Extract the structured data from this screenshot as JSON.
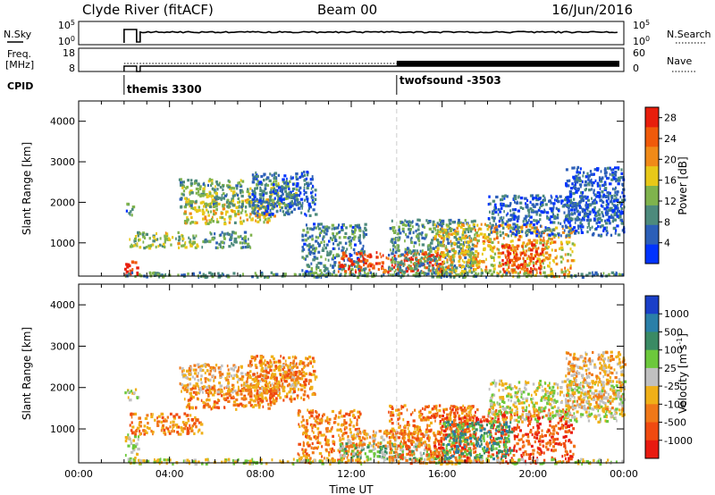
{
  "header": {
    "title": "Clyde River (fitACF)",
    "beam": "Beam 00",
    "date": "16/Jun/2016"
  },
  "top_panels": {
    "nsky_label": "N.Sky",
    "nsky_ticks": [
      "10^5",
      "10^0"
    ],
    "nsearch_label": "N.Search",
    "nsearch_ticks": [
      "10^5",
      "10^0"
    ],
    "freq_label": "Freq.",
    "freq_unit": "[MHz]",
    "freq_ticks": [
      "18",
      "8"
    ],
    "nave_label": "Nave",
    "nave_ticks": [
      "60",
      "0"
    ],
    "cpid_label": "CPID",
    "cpid_entries": [
      {
        "label": "themis 3300",
        "start_hour": 2.0
      },
      {
        "label": "twofsound -3503",
        "start_hour": 14.0
      }
    ]
  },
  "chart_data": [
    {
      "type": "heatmap",
      "title": "",
      "xlabel": "",
      "ylabel": "Slant Range [km]",
      "x_range_hours": [
        0,
        24
      ],
      "ylim": [
        180,
        4500
      ],
      "y_ticks": [
        1000,
        2000,
        3000,
        4000
      ],
      "x_tick_labels": [
        "00:00",
        "04:00",
        "08:00",
        "12:00",
        "16:00",
        "20:00",
        "00:00"
      ],
      "colorbar": {
        "label": "Power [dB]",
        "ticks": [
          4,
          8,
          12,
          16,
          20,
          24,
          28
        ],
        "range": [
          0,
          30
        ],
        "colors": [
          "#0033ff",
          "#2c5fb8",
          "#4d8a7c",
          "#7fb34d",
          "#e8c818",
          "#f08a18",
          "#f05a0a",
          "#e81e0c"
        ]
      },
      "scatter_regions": [
        {
          "start_hour": 2.0,
          "end_hour": 2.6,
          "range_low": 200,
          "range_high": 600,
          "level": 28
        },
        {
          "start_hour": 2.0,
          "end_hour": 2.4,
          "range_low": 1700,
          "range_high": 2000,
          "level": 8
        },
        {
          "start_hour": 2.2,
          "end_hour": 5.2,
          "range_low": 900,
          "range_high": 1300,
          "level": 14
        },
        {
          "start_hour": 4.6,
          "end_hour": 8.6,
          "range_low": 1500,
          "range_high": 2100,
          "level": 16
        },
        {
          "start_hour": 4.4,
          "end_hour": 9.6,
          "range_low": 1900,
          "range_high": 2600,
          "level": 12
        },
        {
          "start_hour": 5.4,
          "end_hour": 7.6,
          "range_low": 900,
          "range_high": 1300,
          "level": 10
        },
        {
          "start_hour": 7.6,
          "end_hour": 10.4,
          "range_low": 1700,
          "range_high": 2800,
          "level": 6
        },
        {
          "start_hour": 9.8,
          "end_hour": 12.6,
          "range_low": 200,
          "range_high": 1500,
          "level": 8
        },
        {
          "start_hour": 11.4,
          "end_hour": 16.0,
          "range_low": 300,
          "range_high": 800,
          "level": 26
        },
        {
          "start_hour": 13.6,
          "end_hour": 17.4,
          "range_low": 200,
          "range_high": 1600,
          "level": 10
        },
        {
          "start_hour": 15.6,
          "end_hour": 21.8,
          "range_low": 200,
          "range_high": 1500,
          "level": 18
        },
        {
          "start_hour": 18.6,
          "end_hour": 20.4,
          "range_low": 300,
          "range_high": 1000,
          "level": 25
        },
        {
          "start_hour": 18.0,
          "end_hour": 24.0,
          "range_low": 1200,
          "range_high": 2200,
          "level": 6
        },
        {
          "start_hour": 21.4,
          "end_hour": 24.0,
          "range_low": 1600,
          "range_high": 2900,
          "level": 5
        },
        {
          "start_hour": 2.0,
          "end_hour": 24.0,
          "range_low": 180,
          "range_high": 300,
          "level": 10
        }
      ]
    },
    {
      "type": "heatmap",
      "title": "",
      "xlabel": "Time UT",
      "ylabel": "Slant Range [km]",
      "x_range_hours": [
        0,
        24
      ],
      "ylim": [
        180,
        4500
      ],
      "y_ticks": [
        1000,
        2000,
        3000,
        4000
      ],
      "x_tick_labels": [
        "00:00",
        "04:00",
        "08:00",
        "12:00",
        "16:00",
        "20:00",
        "00:00"
      ],
      "colorbar": {
        "label": "Velocity [m s^-1]",
        "ticks": [
          "1000",
          "500",
          "100",
          "25",
          "-25",
          "-100",
          "-500",
          "-1000"
        ],
        "colors": [
          "#1a3fc8",
          "#2a7fa8",
          "#3a8a64",
          "#6cc83c",
          "#c0c0c0",
          "#f0b018",
          "#f07818",
          "#f04a10",
          "#e81a10"
        ]
      },
      "scatter_regions": [
        {
          "start_hour": 2.0,
          "end_hour": 2.6,
          "range_low": 200,
          "range_high": 900,
          "level": 4
        },
        {
          "start_hour": 2.0,
          "end_hour": 2.6,
          "range_low": 1700,
          "range_high": 2000,
          "level": 4
        },
        {
          "start_hour": 2.2,
          "end_hour": 5.4,
          "range_low": 900,
          "range_high": 1400,
          "level": 6
        },
        {
          "start_hour": 4.6,
          "end_hour": 8.6,
          "range_low": 1500,
          "range_high": 2100,
          "level": 6
        },
        {
          "start_hour": 4.4,
          "end_hour": 9.6,
          "range_low": 1900,
          "range_high": 2600,
          "level": 5
        },
        {
          "start_hour": 7.4,
          "end_hour": 10.4,
          "range_low": 1700,
          "range_high": 2800,
          "level": 6
        },
        {
          "start_hour": 9.6,
          "end_hour": 12.4,
          "range_low": 200,
          "range_high": 1500,
          "level": 6
        },
        {
          "start_hour": 11.4,
          "end_hour": 15.8,
          "range_low": 300,
          "range_high": 700,
          "level": 3
        },
        {
          "start_hour": 11.8,
          "end_hour": 15.4,
          "range_low": 600,
          "range_high": 1000,
          "level": 5
        },
        {
          "start_hour": 13.6,
          "end_hour": 17.4,
          "range_low": 200,
          "range_high": 1600,
          "level": 6
        },
        {
          "start_hour": 15.6,
          "end_hour": 21.8,
          "range_low": 200,
          "range_high": 1500,
          "level": 7
        },
        {
          "start_hour": 16.0,
          "end_hour": 19.0,
          "range_low": 300,
          "range_high": 1200,
          "level": 2
        },
        {
          "start_hour": 18.0,
          "end_hour": 24.0,
          "range_low": 1200,
          "range_high": 2200,
          "level": 4
        },
        {
          "start_hour": 21.4,
          "end_hour": 24.0,
          "range_low": 1500,
          "range_high": 2900,
          "level": 5
        },
        {
          "start_hour": 2.0,
          "end_hour": 24.0,
          "range_low": 180,
          "range_high": 300,
          "level": 4
        }
      ]
    }
  ]
}
